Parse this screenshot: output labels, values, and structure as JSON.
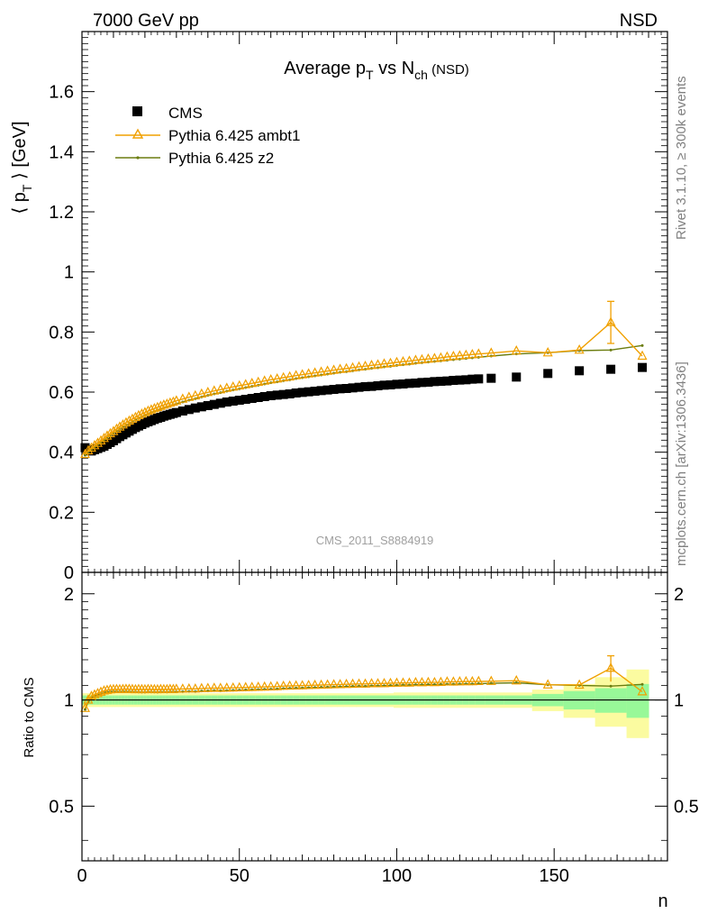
{
  "header": {
    "left": "7000 GeV pp",
    "right": "NSD"
  },
  "chart_data": {
    "type": "scatter",
    "title_main": "Average p",
    "title_sub1": "T",
    "title_mid": " vs N",
    "title_sub2": "ch",
    "title_tail": " (NSD)",
    "ylabel_main": "⟨ p",
    "ylabel_sub": "T",
    "ylabel_tail": " ⟩ [GeV]",
    "xlabel": "n",
    "ratio_ylabel": "Ratio to CMS",
    "watermark": "CMS_2011_S8884919",
    "side_text_top": "Rivet 3.1.10, ≥ 300k events",
    "side_text_bottom": "mcplots.cern.ch [arXiv:1306.3436]",
    "xlim": [
      0,
      186
    ],
    "ylim": [
      0,
      1.8
    ],
    "ratio_ylim": [
      0.35,
      2.3
    ],
    "ratio_log": true,
    "x_ticks": [
      "0",
      "50",
      "100",
      "150"
    ],
    "y_ticks": [
      "0",
      "0.2",
      "0.4",
      "0.6",
      "0.8",
      "1",
      "1.2",
      "1.4",
      "1.6"
    ],
    "ratio_ticks": [
      "0.5",
      "1",
      "2"
    ],
    "legend": {
      "placement": "top-left",
      "entries": [
        "CMS",
        "Pythia 6.425 ambt1",
        "Pythia 6.425 z2"
      ]
    },
    "colors": {
      "data": "#000000",
      "ambt1": "#f0a000",
      "z2": "#6b7d10",
      "band_inner": "#98f898",
      "band_outer": "#fbfba0"
    },
    "series": [
      {
        "name": "CMS",
        "x": [
          1,
          2,
          3,
          4,
          5,
          6,
          7,
          8,
          9,
          10,
          11,
          12,
          13,
          14,
          15,
          16,
          17,
          18,
          19,
          20,
          21,
          22,
          23,
          24,
          25,
          26,
          27,
          28,
          29,
          30,
          32,
          34,
          36,
          38,
          40,
          42,
          44,
          46,
          48,
          50,
          52,
          54,
          56,
          58,
          60,
          62,
          64,
          66,
          68,
          70,
          72,
          74,
          76,
          78,
          80,
          82,
          84,
          86,
          88,
          90,
          92,
          94,
          96,
          98,
          100,
          102,
          104,
          106,
          108,
          110,
          112,
          114,
          116,
          118,
          120,
          122,
          124,
          126,
          130,
          138,
          148,
          158,
          168,
          178
        ],
        "y": [
          0.415,
          0.405,
          0.404,
          0.408,
          0.412,
          0.416,
          0.42,
          0.426,
          0.432,
          0.438,
          0.445,
          0.452,
          0.458,
          0.464,
          0.47,
          0.476,
          0.482,
          0.487,
          0.492,
          0.497,
          0.501,
          0.505,
          0.509,
          0.513,
          0.516,
          0.52,
          0.523,
          0.526,
          0.529,
          0.532,
          0.537,
          0.542,
          0.547,
          0.551,
          0.555,
          0.559,
          0.563,
          0.567,
          0.57,
          0.573,
          0.576,
          0.579,
          0.582,
          0.585,
          0.588,
          0.59,
          0.592,
          0.594,
          0.597,
          0.599,
          0.601,
          0.603,
          0.605,
          0.607,
          0.609,
          0.611,
          0.612,
          0.614,
          0.616,
          0.618,
          0.619,
          0.621,
          0.623,
          0.624,
          0.626,
          0.627,
          0.629,
          0.63,
          0.632,
          0.633,
          0.635,
          0.636,
          0.637,
          0.639,
          0.64,
          0.641,
          0.643,
          0.644,
          0.646,
          0.65,
          0.662,
          0.671,
          0.676,
          0.682
        ]
      },
      {
        "name": "Pythia 6.425 ambt1",
        "x": [
          1,
          2,
          3,
          4,
          5,
          6,
          7,
          8,
          9,
          10,
          11,
          12,
          13,
          14,
          15,
          16,
          17,
          18,
          19,
          20,
          21,
          22,
          23,
          24,
          25,
          26,
          27,
          28,
          29,
          30,
          32,
          34,
          36,
          38,
          40,
          42,
          44,
          46,
          48,
          50,
          52,
          54,
          56,
          58,
          60,
          62,
          64,
          66,
          68,
          70,
          72,
          74,
          76,
          78,
          80,
          82,
          84,
          86,
          88,
          90,
          92,
          94,
          96,
          98,
          100,
          102,
          104,
          106,
          108,
          110,
          112,
          114,
          116,
          118,
          120,
          122,
          124,
          126,
          130,
          138,
          148,
          158,
          168,
          178
        ],
        "y": [
          0.393,
          0.405,
          0.414,
          0.422,
          0.43,
          0.438,
          0.446,
          0.454,
          0.462,
          0.469,
          0.477,
          0.484,
          0.491,
          0.498,
          0.504,
          0.51,
          0.516,
          0.522,
          0.527,
          0.532,
          0.537,
          0.541,
          0.545,
          0.549,
          0.553,
          0.557,
          0.56,
          0.564,
          0.567,
          0.571,
          0.577,
          0.583,
          0.588,
          0.594,
          0.599,
          0.604,
          0.608,
          0.613,
          0.617,
          0.621,
          0.625,
          0.629,
          0.633,
          0.637,
          0.641,
          0.644,
          0.648,
          0.651,
          0.655,
          0.658,
          0.661,
          0.664,
          0.667,
          0.67,
          0.673,
          0.676,
          0.678,
          0.681,
          0.684,
          0.686,
          0.689,
          0.691,
          0.694,
          0.696,
          0.699,
          0.701,
          0.703,
          0.706,
          0.708,
          0.71,
          0.712,
          0.714,
          0.717,
          0.719,
          0.721,
          0.723,
          0.725,
          0.727,
          0.73,
          0.737,
          0.731,
          0.74,
          0.832,
          0.72
        ],
        "yerr_sample": {
          "x": 168,
          "err": 0.07
        }
      },
      {
        "name": "Pythia 6.425 z2",
        "x": [
          1,
          2,
          3,
          4,
          5,
          6,
          7,
          8,
          9,
          10,
          11,
          12,
          13,
          14,
          15,
          16,
          17,
          18,
          19,
          20,
          21,
          22,
          23,
          24,
          25,
          26,
          27,
          28,
          29,
          30,
          32,
          34,
          36,
          38,
          40,
          42,
          44,
          46,
          48,
          50,
          52,
          54,
          56,
          58,
          60,
          62,
          64,
          66,
          68,
          70,
          72,
          74,
          76,
          78,
          80,
          82,
          84,
          86,
          88,
          90,
          92,
          94,
          96,
          98,
          100,
          102,
          104,
          106,
          108,
          110,
          112,
          114,
          116,
          118,
          120,
          122,
          124,
          126,
          130,
          138,
          148,
          158,
          168,
          178
        ],
        "y": [
          0.39,
          0.401,
          0.41,
          0.418,
          0.426,
          0.433,
          0.441,
          0.449,
          0.456,
          0.463,
          0.47,
          0.477,
          0.484,
          0.49,
          0.496,
          0.502,
          0.508,
          0.513,
          0.518,
          0.523,
          0.528,
          0.532,
          0.536,
          0.54,
          0.544,
          0.548,
          0.551,
          0.555,
          0.558,
          0.561,
          0.567,
          0.573,
          0.578,
          0.584,
          0.589,
          0.594,
          0.598,
          0.603,
          0.607,
          0.611,
          0.615,
          0.619,
          0.623,
          0.627,
          0.631,
          0.634,
          0.638,
          0.641,
          0.645,
          0.648,
          0.651,
          0.654,
          0.657,
          0.66,
          0.663,
          0.666,
          0.668,
          0.671,
          0.674,
          0.676,
          0.679,
          0.681,
          0.684,
          0.686,
          0.689,
          0.691,
          0.693,
          0.696,
          0.698,
          0.7,
          0.702,
          0.704,
          0.706,
          0.708,
          0.71,
          0.712,
          0.714,
          0.716,
          0.72,
          0.727,
          0.731,
          0.738,
          0.74,
          0.755
        ]
      }
    ]
  }
}
